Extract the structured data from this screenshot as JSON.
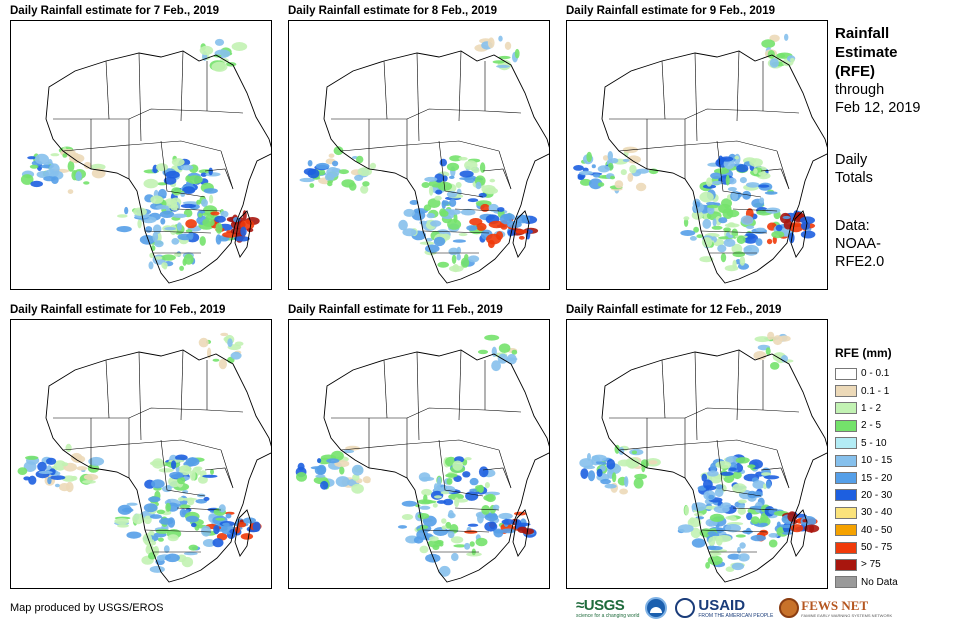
{
  "panels": [
    {
      "title": "Daily Rainfall estimate for 7 Feb., 2019",
      "rain_intensity": 1.0
    },
    {
      "title": "Daily Rainfall estimate for 8 Feb., 2019",
      "rain_intensity": 0.85
    },
    {
      "title": "Daily Rainfall estimate for 9 Feb., 2019",
      "rain_intensity": 1.05
    },
    {
      "title": "Daily Rainfall estimate for 10 Feb., 2019",
      "rain_intensity": 1.0
    },
    {
      "title": "Daily Rainfall estimate for 11 Feb., 2019",
      "rain_intensity": 0.8
    },
    {
      "title": "Daily Rainfall estimate for 12 Feb., 2019",
      "rain_intensity": 1.1
    }
  ],
  "sidebar": {
    "title_line1": "Rainfall",
    "title_line2": "Estimate",
    "title_line3": "(RFE)",
    "through_label": "through",
    "through_date": "Feb 12, 2019",
    "totals_line1": "Daily",
    "totals_line2": "Totals",
    "data_line1": "Data:",
    "data_line2": "NOAA-",
    "data_line3": "RFE2.0"
  },
  "legend": {
    "title": "RFE (mm)",
    "items": [
      {
        "label": "0 - 0.1",
        "color": "#ffffff"
      },
      {
        "label": "0.1 - 1",
        "color": "#ecd9b8"
      },
      {
        "label": "1 - 2",
        "color": "#c2f2b3"
      },
      {
        "label": "2 - 5",
        "color": "#74e26b"
      },
      {
        "label": "5 - 10",
        "color": "#b3ecf5"
      },
      {
        "label": "10 - 15",
        "color": "#86c0ec"
      },
      {
        "label": "15 - 20",
        "color": "#559fe8"
      },
      {
        "label": "20 - 30",
        "color": "#1d5fe0"
      },
      {
        "label": "30 - 40",
        "color": "#fbe37b"
      },
      {
        "label": "40 - 50",
        "color": "#f5a200"
      },
      {
        "label": "50 - 75",
        "color": "#f03a0a"
      },
      {
        "label": "> 75",
        "color": "#a8160e"
      },
      {
        "label": "No Data",
        "color": "#9a9a9a"
      }
    ]
  },
  "footer": {
    "credit": "Map produced by USGS/EROS",
    "usgs": "≈USGS",
    "usgs_tagline": "science for a changing world",
    "usaid": "USAID",
    "usaid_tagline": "FROM THE AMERICAN PEOPLE",
    "fews": "FEWS NET",
    "fews_tagline": "FAMINE EARLY WARNING SYSTEMS NETWORK"
  }
}
